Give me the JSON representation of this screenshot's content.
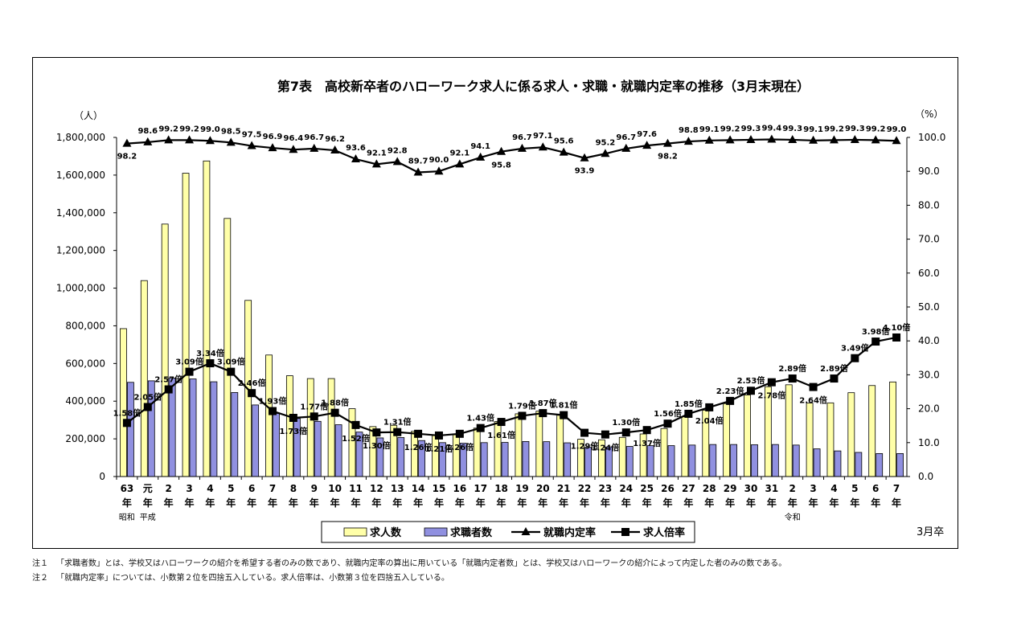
{
  "chart_data": {
    "type": "bar",
    "title": "第7表　高校新卒者のハローワーク求人に係る求人・求職・就職内定率の推移（3月末現在）",
    "ylabel_left": "（人）",
    "ylabel_right": "（%）",
    "xlabel": "3月卒",
    "ylim_left": [
      0,
      1800000
    ],
    "ylim_right": [
      0.0,
      100.0
    ],
    "yticks_left": [
      "0",
      "200,000",
      "400,000",
      "600,000",
      "800,000",
      "1,000,000",
      "1,200,000",
      "1,400,000",
      "1,600,000",
      "1,800,000"
    ],
    "yticks_right": [
      "0.0",
      "10.0",
      "20.0",
      "30.0",
      "40.0",
      "50.0",
      "60.0",
      "70.0",
      "80.0",
      "90.0",
      "100.0"
    ],
    "categories": [
      "63",
      "元",
      "2",
      "3",
      "4",
      "5",
      "6",
      "7",
      "8",
      "9",
      "10",
      "11",
      "12",
      "13",
      "14",
      "15",
      "16",
      "17",
      "18",
      "19",
      "20",
      "21",
      "22",
      "23",
      "24",
      "25",
      "26",
      "27",
      "28",
      "29",
      "30",
      "31",
      "2",
      "3",
      "4",
      "5",
      "6",
      "7"
    ],
    "year_suffix": "年",
    "era_labels": [
      {
        "index": 0,
        "text": "昭和"
      },
      {
        "index": 1,
        "text": "平成"
      },
      {
        "index": 32,
        "text": "令和"
      }
    ],
    "series": [
      {
        "name": "求人数",
        "kind": "bar",
        "color": "#ffffa8",
        "values": [
          785000,
          1040000,
          1340000,
          1610000,
          1675000,
          1370000,
          935000,
          645000,
          535000,
          520000,
          520000,
          360000,
          265000,
          272000,
          240000,
          218000,
          222000,
          257000,
          292000,
          333000,
          347000,
          325000,
          198000,
          195000,
          208000,
          226000,
          255000,
          317000,
          352000,
          387000,
          433000,
          477000,
          487000,
          390000,
          391000,
          445000,
          483000,
          502000
        ]
      },
      {
        "name": "求職者数",
        "kind": "bar",
        "color": "#9090e0",
        "values": [
          500000,
          508000,
          522000,
          518000,
          503000,
          446000,
          380000,
          335000,
          308000,
          293000,
          275000,
          236000,
          205000,
          207000,
          191000,
          180000,
          177000,
          180000,
          181000,
          186000,
          185000,
          179000,
          155000,
          157000,
          160000,
          164000,
          164000,
          167000,
          170000,
          170000,
          169000,
          170000,
          167000,
          147000,
          136000,
          128000,
          122000,
          122000
        ]
      },
      {
        "name": "就職内定率",
        "kind": "line",
        "marker": "triangle",
        "values": [
          98.2,
          98.6,
          99.2,
          99.2,
          99.0,
          98.5,
          97.5,
          96.9,
          96.4,
          96.7,
          96.2,
          93.6,
          92.1,
          92.8,
          89.7,
          90.0,
          92.1,
          94.1,
          95.8,
          96.7,
          97.1,
          95.6,
          93.9,
          95.2,
          96.7,
          97.6,
          98.2,
          98.8,
          99.1,
          99.2,
          99.3,
          99.4,
          99.3,
          99.1,
          99.2,
          99.3,
          99.2,
          99.0
        ],
        "labels": [
          "98.2",
          "98.6",
          "99.2",
          "99.2",
          "99.0",
          "98.5",
          "97.5",
          "96.9",
          "96.4",
          "96.7",
          "96.2",
          "93.6",
          "92.1",
          "92.8",
          "89.7",
          "90.0",
          "92.1",
          "94.1",
          "95.8",
          "96.7",
          "97.1",
          "95.6",
          "93.9",
          "95.2",
          "96.7",
          "97.6",
          "98.2",
          "98.8",
          "99.1",
          "99.2",
          "99.3",
          "99.4",
          "99.3",
          "99.1",
          "99.2",
          "99.3",
          "99.2",
          "99.0"
        ]
      },
      {
        "name": "求人倍率",
        "kind": "line",
        "marker": "square",
        "values": [
          1.58,
          2.05,
          2.57,
          3.09,
          3.34,
          3.09,
          2.46,
          1.93,
          1.73,
          1.77,
          1.88,
          1.52,
          1.3,
          1.31,
          1.26,
          1.21,
          1.26,
          1.43,
          1.61,
          1.79,
          1.87,
          1.81,
          1.29,
          1.24,
          1.3,
          1.37,
          1.56,
          1.85,
          2.04,
          2.23,
          2.53,
          2.78,
          2.89,
          2.64,
          2.89,
          3.49,
          3.98,
          4.1
        ],
        "labels": [
          "1.58倍",
          "2.05倍",
          "2.57倍",
          "3.09倍",
          "3.34倍",
          "3.09倍",
          "2.46倍",
          "1.93倍",
          "1.73倍",
          "1.77倍",
          "1.88倍",
          "1.52倍",
          "1.30倍",
          "1.31倍",
          "1.26倍",
          "1.21倍",
          "1.26倍",
          "1.43倍",
          "1.61倍",
          "1.79倍",
          "1.87倍",
          "1.81倍",
          "1.29倍",
          "1.24倍",
          "1.30倍",
          "1.37倍",
          "1.56倍",
          "1.85倍",
          "2.04倍",
          "2.23倍",
          "2.53倍",
          "2.78倍",
          "2.89倍",
          "2.64倍",
          "2.89倍",
          "3.49倍",
          "3.98倍",
          "4.10倍"
        ]
      }
    ],
    "legend": [
      "求人数",
      "求職者数",
      "就職内定率",
      "求人倍率"
    ]
  },
  "notes": [
    {
      "label": "注１",
      "text": "「求職者数」とは、学校又はハローワークの紹介を希望する者のみの数であり、就職内定率の算出に用いている「就職内定者数」とは、学校又はハローワークの紹介によって内定した者のみの数である。"
    },
    {
      "label": "注２",
      "text": "「就職内定率」については、小数第２位を四捨五入している。求人倍率は、小数第３位を四捨五入している。"
    }
  ]
}
